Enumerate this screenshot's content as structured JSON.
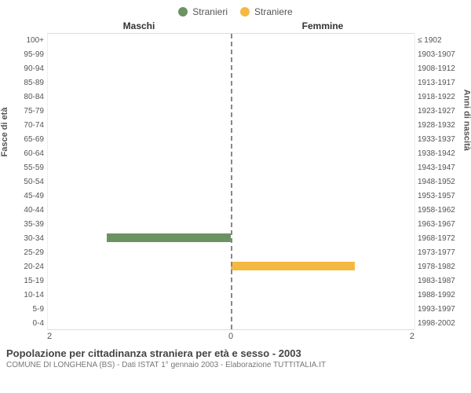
{
  "legend": {
    "male": {
      "label": "Stranieri",
      "color": "#6b9362"
    },
    "female": {
      "label": "Straniere",
      "color": "#f5b942"
    }
  },
  "headers": {
    "male": "Maschi",
    "female": "Femmine"
  },
  "y_left_label": "Fasce di età",
  "y_right_label": "Anni di nascità",
  "age_labels": [
    "100+",
    "95-99",
    "90-94",
    "85-89",
    "80-84",
    "75-79",
    "70-74",
    "65-69",
    "60-64",
    "55-59",
    "50-54",
    "45-49",
    "40-44",
    "35-39",
    "30-34",
    "25-29",
    "20-24",
    "15-19",
    "10-14",
    "5-9",
    "0-4"
  ],
  "year_labels": [
    "≤ 1902",
    "1903-1907",
    "1908-1912",
    "1913-1917",
    "1918-1922",
    "1923-1927",
    "1928-1932",
    "1933-1937",
    "1938-1942",
    "1943-1947",
    "1948-1952",
    "1953-1957",
    "1958-1962",
    "1963-1967",
    "1968-1972",
    "1973-1977",
    "1978-1982",
    "1983-1987",
    "1988-1992",
    "1993-1997",
    "1998-2002"
  ],
  "xmax": 2,
  "xticks_left": [
    "2",
    "0"
  ],
  "xticks_right": [
    "0",
    "2"
  ],
  "male_values": [
    0,
    0,
    0,
    0,
    0,
    0,
    0,
    0,
    0,
    0,
    0,
    0,
    0,
    0,
    1.35,
    0,
    0,
    0,
    0,
    0,
    0
  ],
  "female_values": [
    0,
    0,
    0,
    0,
    0,
    0,
    0,
    0,
    0,
    0,
    0,
    0,
    0,
    0,
    0,
    0,
    1.35,
    0,
    0,
    0,
    0
  ],
  "colors": {
    "bar_male": "#6b9362",
    "bar_female": "#f5b942",
    "centerline": "#888888",
    "grid": "#eeeeee",
    "background": "#ffffff",
    "text": "#555555"
  },
  "caption": {
    "title": "Popolazione per cittadinanza straniera per età e sesso - 2003",
    "subtitle": "COMUNE DI LONGHENA (BS) - Dati ISTAT 1° gennaio 2003 - Elaborazione TUTTITALIA.IT"
  }
}
